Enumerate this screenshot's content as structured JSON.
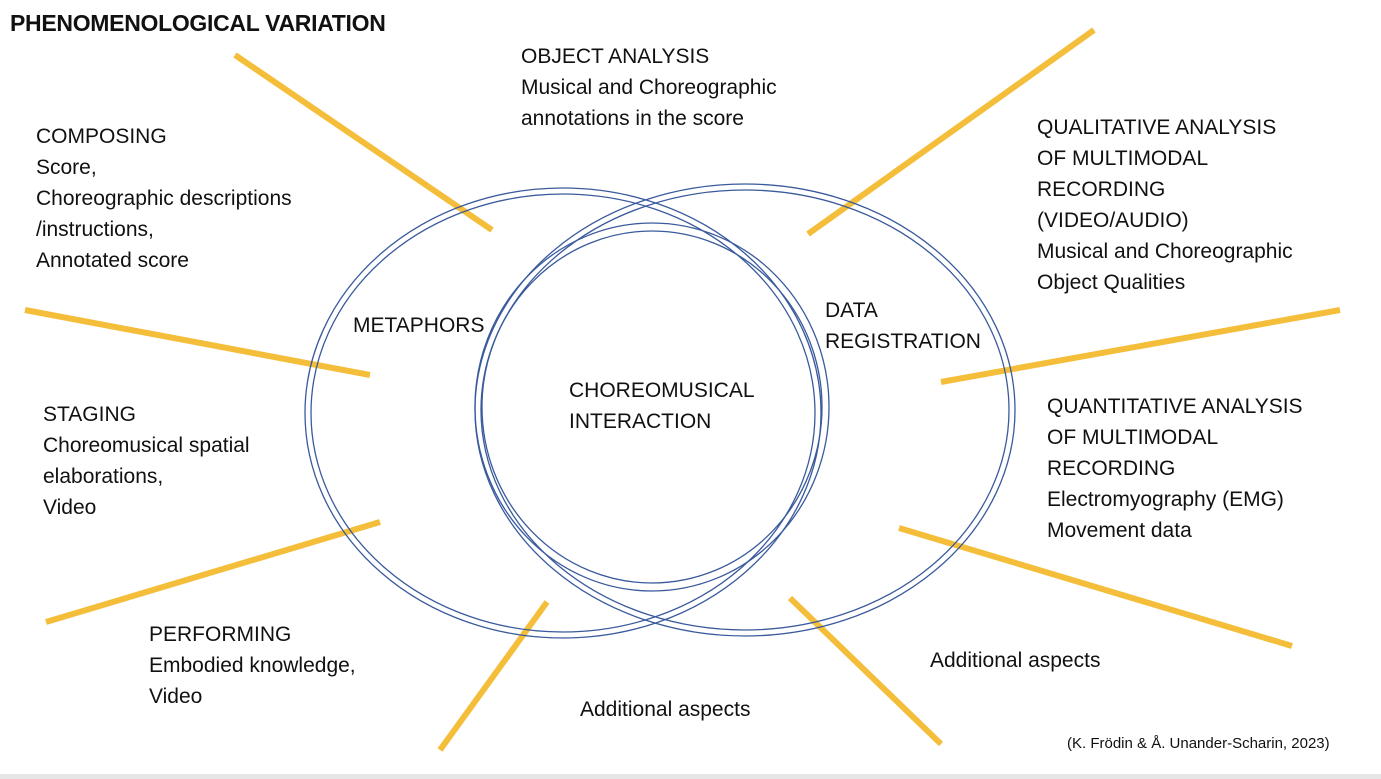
{
  "title": "PHENOMENOLOGICAL VARIATION",
  "colors": {
    "spokes": "#F4BE3A",
    "circles": "#3A5A9C",
    "text": "#111111"
  },
  "circles": {
    "left": "METAPHORS",
    "right": [
      "DATA",
      "REGISTRATION"
    ],
    "center": [
      "CHOREOMUSICAL",
      "INTERACTION"
    ]
  },
  "aspects": {
    "object_analysis": [
      "OBJECT ANALYSIS",
      "Musical and Choreographic",
      "annotations in the score"
    ],
    "composing": [
      "COMPOSING",
      "Score,",
      "Choreographic descriptions",
      "/instructions,",
      "Annotated score"
    ],
    "qualitative": [
      "QUALITATIVE ANALYSIS",
      "OF MULTIMODAL",
      "RECORDING",
      "(VIDEO/AUDIO)",
      "Musical and Choreographic",
      "Object Qualities"
    ],
    "staging": [
      "STAGING",
      "Choreomusical spatial",
      "elaborations,",
      "Video"
    ],
    "quantitative": [
      "QUANTITATIVE ANALYSIS",
      "OF MULTIMODAL",
      "RECORDING",
      "Electromyography (EMG)",
      "Movement data"
    ],
    "performing": [
      "PERFORMING",
      "Embodied knowledge,",
      "Video"
    ],
    "additional_bottom": "Additional aspects",
    "additional_right": "Additional aspects"
  },
  "citation": "(K. Frödin & Å. Unander-Scharin, 2023)"
}
